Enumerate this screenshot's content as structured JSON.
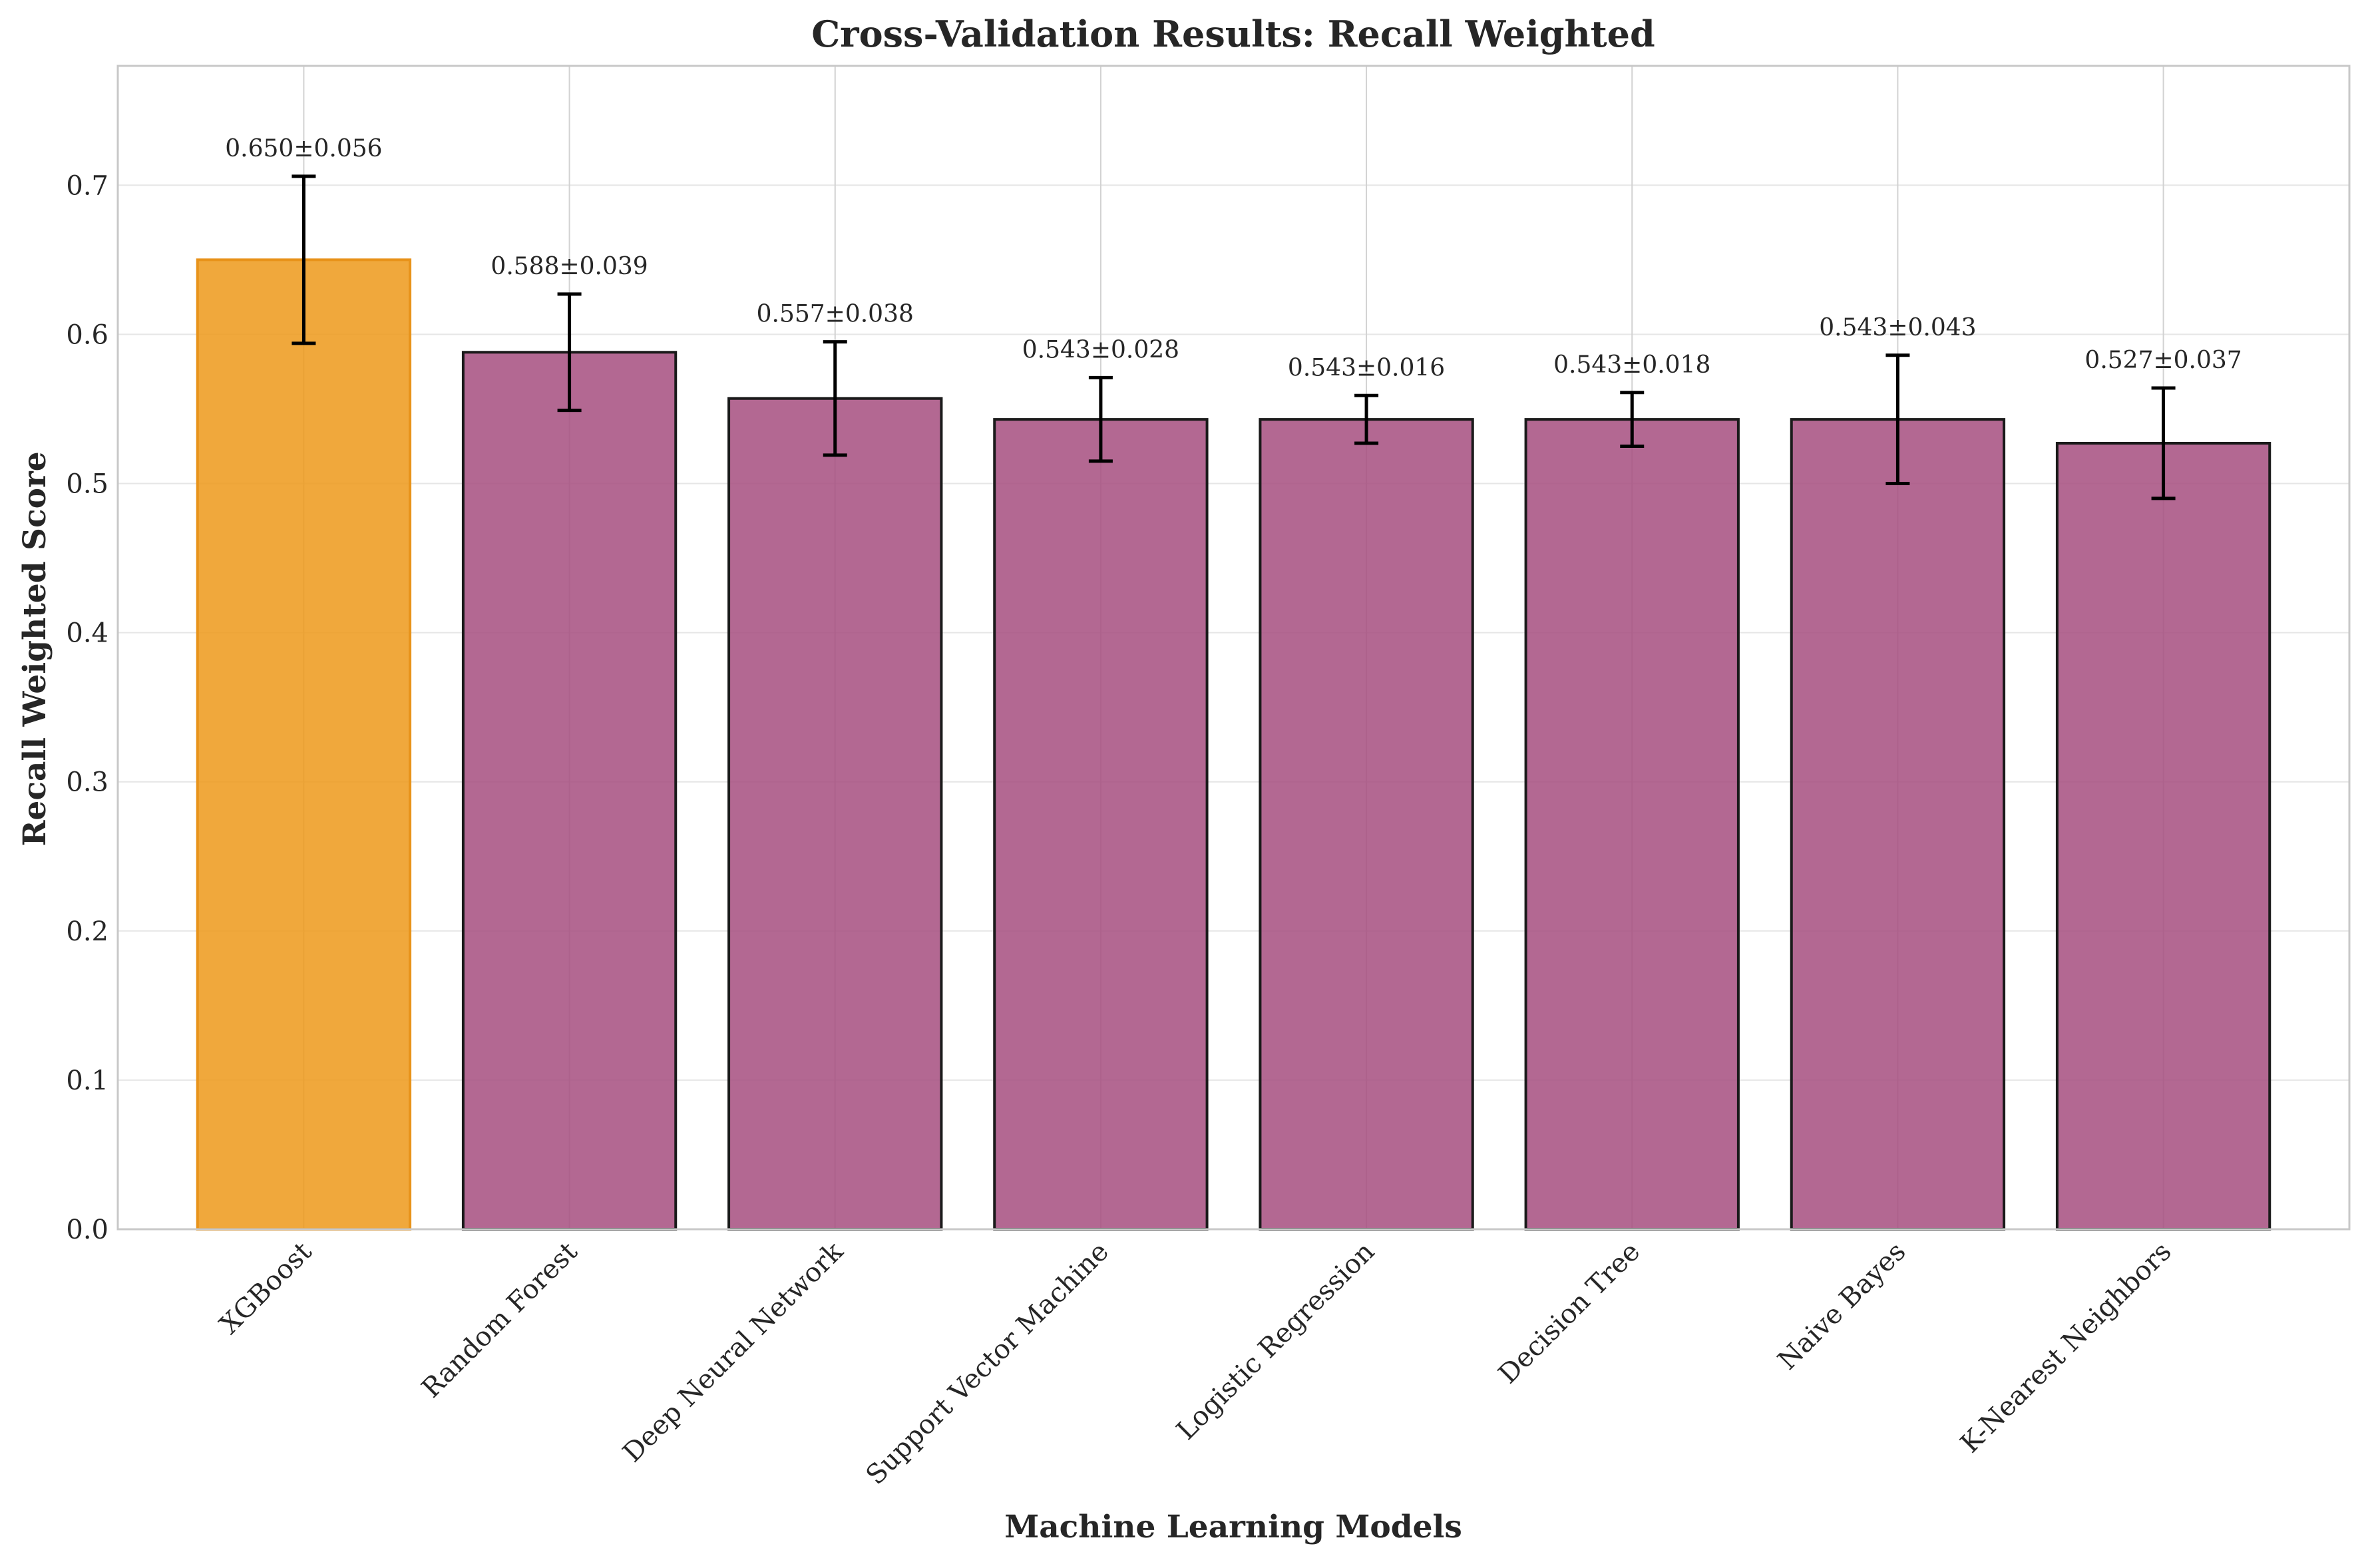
{
  "chart_data": {
    "type": "bar",
    "title": "Cross-Validation Results: Recall Weighted",
    "xlabel": "Machine Learning Models",
    "ylabel": "Recall Weighted Score",
    "categories": [
      "XGBoost",
      "Random Forest",
      "Deep Neural Network",
      "Support Vector Machine",
      "Logistic Regression",
      "Decision Tree",
      "Naive Bayes",
      "K-Nearest Neighbors"
    ],
    "values": [
      0.65,
      0.588,
      0.557,
      0.543,
      0.543,
      0.543,
      0.543,
      0.527
    ],
    "errors": [
      0.056,
      0.039,
      0.038,
      0.028,
      0.016,
      0.018,
      0.043,
      0.037
    ],
    "data_labels": [
      "0.650±0.056",
      "0.588±0.039",
      "0.557±0.038",
      "0.543±0.028",
      "0.543±0.016",
      "0.543±0.018",
      "0.543±0.043",
      "0.527±0.037"
    ],
    "ylim": [
      0,
      0.78
    ],
    "yticks": [
      0.0,
      0.1,
      0.2,
      0.3,
      0.4,
      0.5,
      0.6,
      0.7
    ],
    "ytick_labels": [
      "0.0",
      "0.1",
      "0.2",
      "0.3",
      "0.4",
      "0.5",
      "0.6",
      "0.7"
    ],
    "grid": true,
    "highlight_index": 0,
    "colors": {
      "highlight": "#ee9a1c",
      "bar": "#a64f80",
      "bar_edge": "#1a1a1a",
      "highlight_edge": "#e8931a",
      "error_bar": "#000000",
      "grid": "#e6e6e6",
      "axes_edge": "#c8c8c8",
      "text": "#262626"
    }
  }
}
